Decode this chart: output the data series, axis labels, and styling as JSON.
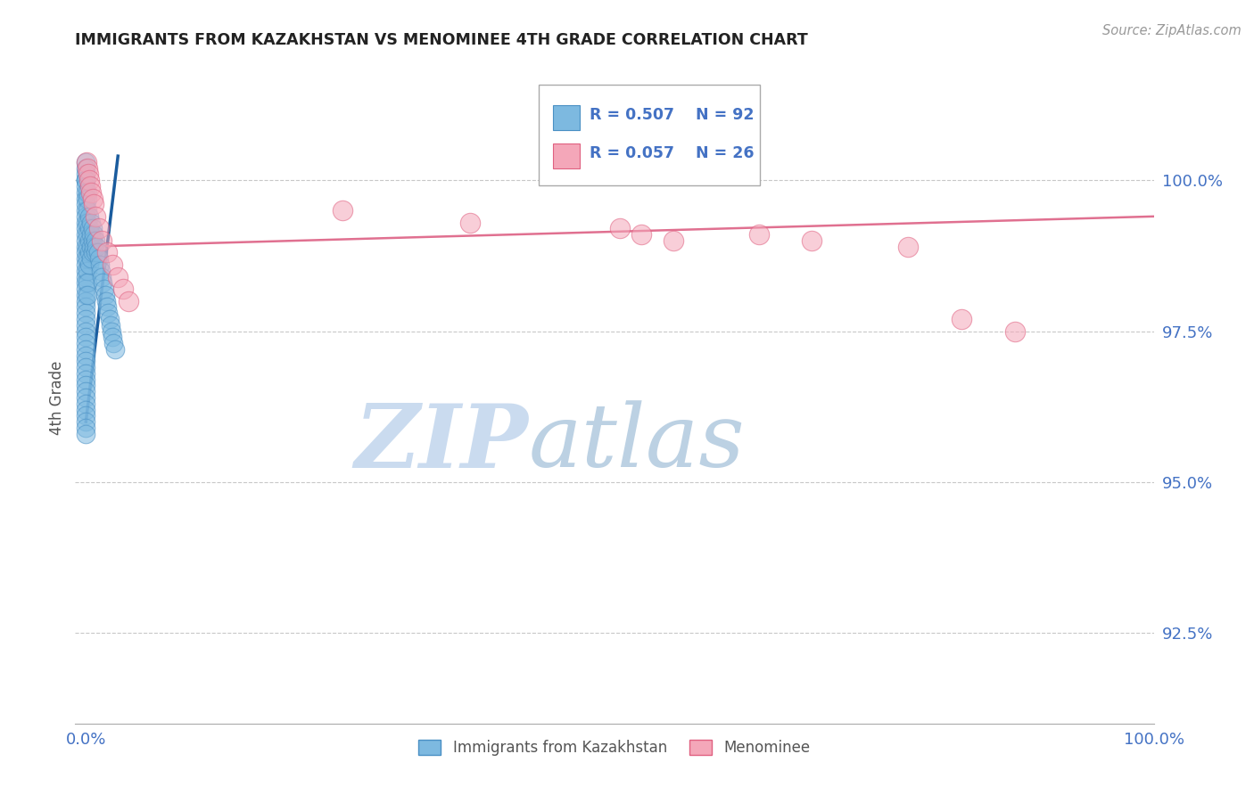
{
  "title": "IMMIGRANTS FROM KAZAKHSTAN VS MENOMINEE 4TH GRADE CORRELATION CHART",
  "source": "Source: ZipAtlas.com",
  "xlabel_legend1": "Immigrants from Kazakhstan",
  "xlabel_legend2": "Menominee",
  "ylabel": "4th Grade",
  "xlim": [
    -1.0,
    100.0
  ],
  "ylim": [
    91.0,
    101.8
  ],
  "yticks": [
    92.5,
    95.0,
    97.5,
    100.0
  ],
  "ytick_labels": [
    "92.5%",
    "95.0%",
    "97.5%",
    "100.0%"
  ],
  "xtick_labels": [
    "0.0%",
    "100.0%"
  ],
  "xtick_vals": [
    0,
    100
  ],
  "legend_r1": "R = 0.507",
  "legend_n1": "N = 92",
  "legend_r2": "R = 0.057",
  "legend_n2": "N = 26",
  "blue_color": "#7db9e0",
  "blue_edge": "#4a90c4",
  "pink_color": "#f4a7b9",
  "pink_edge": "#e06080",
  "blue_line_color": "#1a5c9e",
  "pink_line_color": "#e07090",
  "watermark_zip_color": "#c8d8ee",
  "watermark_atlas_color": "#b0c8e8",
  "title_color": "#222222",
  "axis_label_color": "#555555",
  "tick_color": "#4472c4",
  "grid_color": "#c8c8c8",
  "blue_x": [
    0.0,
    0.0,
    0.0,
    0.0,
    0.0,
    0.0,
    0.0,
    0.0,
    0.0,
    0.0,
    0.0,
    0.0,
    0.0,
    0.0,
    0.0,
    0.0,
    0.0,
    0.0,
    0.0,
    0.0,
    0.0,
    0.0,
    0.0,
    0.0,
    0.0,
    0.0,
    0.0,
    0.0,
    0.0,
    0.0,
    0.0,
    0.0,
    0.0,
    0.0,
    0.0,
    0.0,
    0.0,
    0.0,
    0.0,
    0.0,
    0.0,
    0.0,
    0.0,
    0.0,
    0.0,
    0.0,
    0.0,
    0.0,
    0.15,
    0.15,
    0.15,
    0.15,
    0.15,
    0.15,
    0.15,
    0.15,
    0.15,
    0.15,
    0.3,
    0.3,
    0.3,
    0.3,
    0.3,
    0.45,
    0.45,
    0.45,
    0.45,
    0.6,
    0.6,
    0.6,
    0.75,
    0.75,
    0.9,
    0.9,
    1.0,
    1.1,
    1.2,
    1.3,
    1.4,
    1.5,
    1.6,
    1.7,
    1.8,
    1.9,
    2.0,
    2.1,
    2.2,
    2.3,
    2.4,
    2.5,
    2.6,
    2.7
  ],
  "blue_y": [
    100.3,
    100.2,
    100.1,
    100.0,
    100.0,
    100.0,
    99.9,
    99.8,
    99.7,
    99.6,
    99.5,
    99.4,
    99.3,
    99.2,
    99.1,
    99.0,
    98.9,
    98.8,
    98.7,
    98.6,
    98.5,
    98.4,
    98.3,
    98.2,
    98.1,
    98.0,
    97.9,
    97.8,
    97.7,
    97.6,
    97.5,
    97.4,
    97.3,
    97.2,
    97.1,
    97.0,
    96.9,
    96.8,
    96.7,
    96.6,
    96.5,
    96.4,
    96.3,
    96.2,
    96.1,
    96.0,
    95.9,
    95.8,
    99.8,
    99.7,
    99.5,
    99.3,
    99.1,
    98.9,
    98.7,
    98.5,
    98.3,
    98.1,
    99.4,
    99.2,
    99.0,
    98.8,
    98.6,
    99.3,
    99.1,
    98.9,
    98.7,
    99.2,
    99.0,
    98.8,
    99.1,
    98.9,
    99.0,
    98.8,
    98.9,
    98.8,
    98.7,
    98.6,
    98.5,
    98.4,
    98.3,
    98.2,
    98.1,
    98.0,
    97.9,
    97.8,
    97.7,
    97.6,
    97.5,
    97.4,
    97.3,
    97.2
  ],
  "pink_x": [
    0.05,
    0.1,
    0.2,
    0.3,
    0.4,
    0.5,
    0.6,
    0.7,
    0.9,
    1.2,
    1.5,
    2.0,
    2.5,
    3.0,
    3.5,
    4.0,
    24.0,
    36.0,
    50.0,
    52.0,
    55.0,
    63.0,
    68.0,
    77.0,
    82.0,
    87.0
  ],
  "pink_y": [
    100.3,
    100.2,
    100.1,
    100.0,
    99.9,
    99.8,
    99.7,
    99.6,
    99.4,
    99.2,
    99.0,
    98.8,
    98.6,
    98.4,
    98.2,
    98.0,
    99.5,
    99.3,
    99.2,
    99.1,
    99.0,
    99.1,
    99.0,
    98.9,
    97.7,
    97.5
  ],
  "blue_line_x0": 0.0,
  "blue_line_x1": 3.0,
  "blue_line_y0": 96.0,
  "blue_line_y1": 100.4,
  "pink_line_x0": 0.0,
  "pink_line_x1": 100.0,
  "pink_line_y0": 98.9,
  "pink_line_y1": 99.4
}
